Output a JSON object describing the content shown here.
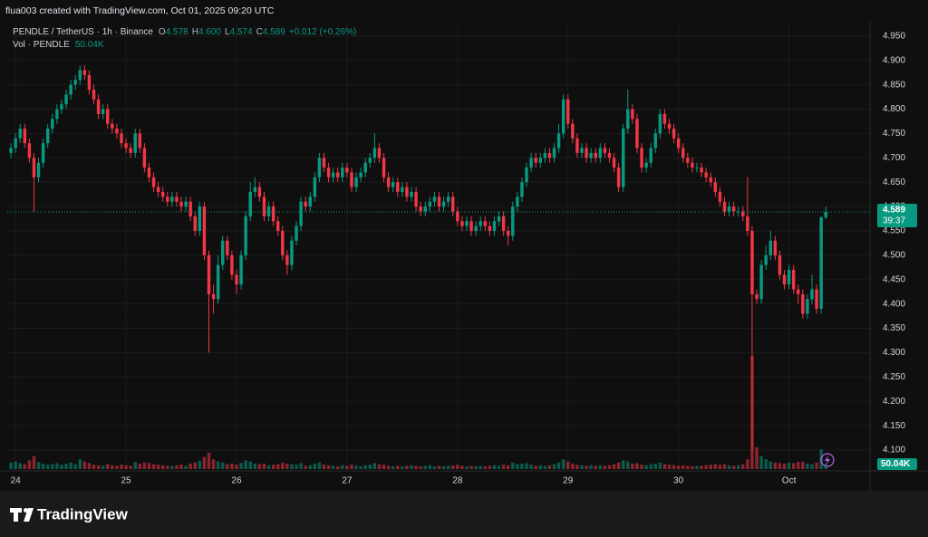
{
  "header": {
    "credit": "flua003 created with TradingView.com, Oct 01, 2025 09:20 UTC"
  },
  "chart_data": {
    "type": "candlestick",
    "symbol": "PENDLE / TetherUS · 1h · Binance",
    "legend_labels": [
      "O",
      "H",
      "L",
      "C"
    ],
    "legend_values": {
      "open": "4.578",
      "high": "4.600",
      "low": "4.574",
      "close": "4.589",
      "change": "+0.012 (+0.26%)"
    },
    "volume_label": "Vol · PENDLE",
    "volume_value_label": "50.04K",
    "up_color": "#089981",
    "down_color": "#f23645",
    "grid": true,
    "last_price": 4.589,
    "countdown": "39:37",
    "xlim": [
      -0.8,
      186.6
    ],
    "xticks": [
      {
        "value": 1,
        "label": "24"
      },
      {
        "value": 25,
        "label": "25"
      },
      {
        "value": 49,
        "label": "26"
      },
      {
        "value": 73,
        "label": "27"
      },
      {
        "value": 97,
        "label": "28"
      },
      {
        "value": 121,
        "label": "29"
      },
      {
        "value": 145,
        "label": "30"
      },
      {
        "value": 169,
        "label": "Oct"
      }
    ],
    "ylim": [
      4.061,
      4.972
    ],
    "yticks": [
      {
        "value": 4.1,
        "label": "4.100"
      },
      {
        "value": 4.15,
        "label": "4.150"
      },
      {
        "value": 4.2,
        "label": "4.200"
      },
      {
        "value": 4.25,
        "label": "4.250"
      },
      {
        "value": 4.3,
        "label": "4.300"
      },
      {
        "value": 4.35,
        "label": "4.350"
      },
      {
        "value": 4.4,
        "label": "4.400"
      },
      {
        "value": 4.45,
        "label": "4.450"
      },
      {
        "value": 4.5,
        "label": "4.500"
      },
      {
        "value": 4.55,
        "label": "4.550"
      },
      {
        "value": 4.6,
        "label": "4.600"
      },
      {
        "value": 4.65,
        "label": "4.650"
      },
      {
        "value": 4.7,
        "label": "4.700"
      },
      {
        "value": 4.75,
        "label": "4.750"
      },
      {
        "value": 4.8,
        "label": "4.800"
      },
      {
        "value": 4.85,
        "label": "4.850"
      },
      {
        "value": 4.9,
        "label": "4.900"
      },
      {
        "value": 4.95,
        "label": "4.950"
      }
    ],
    "open": [
      4.71,
      4.72,
      4.74,
      4.76,
      4.73,
      4.7,
      4.66,
      4.69,
      4.73,
      4.76,
      4.78,
      4.8,
      4.81,
      4.83,
      4.85,
      4.86,
      4.88,
      4.87,
      4.84,
      4.82,
      4.79,
      4.8,
      4.77,
      4.76,
      4.75,
      4.73,
      4.72,
      4.71,
      4.75,
      4.72,
      4.68,
      4.66,
      4.64,
      4.63,
      4.62,
      4.61,
      4.62,
      4.61,
      4.6,
      4.61,
      4.58,
      4.55,
      4.6,
      4.5,
      4.42,
      4.41,
      4.48,
      4.53,
      4.5,
      4.46,
      4.44,
      4.5,
      4.58,
      4.63,
      4.64,
      4.62,
      4.58,
      4.6,
      4.57,
      4.55,
      4.5,
      4.48,
      4.53,
      4.56,
      4.61,
      4.6,
      4.62,
      4.66,
      4.7,
      4.68,
      4.66,
      4.67,
      4.66,
      4.68,
      4.67,
      4.64,
      4.66,
      4.67,
      4.69,
      4.7,
      4.72,
      4.7,
      4.66,
      4.64,
      4.65,
      4.63,
      4.64,
      4.62,
      4.63,
      4.6,
      4.59,
      4.6,
      4.61,
      4.62,
      4.6,
      4.61,
      4.62,
      4.59,
      4.57,
      4.56,
      4.57,
      4.55,
      4.56,
      4.57,
      4.56,
      4.55,
      4.57,
      4.58,
      4.55,
      4.54,
      4.6,
      4.62,
      4.65,
      4.68,
      4.7,
      4.69,
      4.7,
      4.71,
      4.7,
      4.72,
      4.75,
      4.82,
      4.77,
      4.74,
      4.71,
      4.72,
      4.7,
      4.71,
      4.7,
      4.72,
      4.71,
      4.7,
      4.68,
      4.64,
      4.76,
      4.8,
      4.78,
      4.72,
      4.68,
      4.69,
      4.72,
      4.75,
      4.79,
      4.77,
      4.76,
      4.74,
      4.72,
      4.7,
      4.69,
      4.68,
      4.68,
      4.67,
      4.66,
      4.65,
      4.63,
      4.61,
      4.59,
      4.6,
      4.59,
      4.59,
      4.58,
      4.55,
      4.42,
      4.41,
      4.48,
      4.5,
      4.53,
      4.5,
      4.46,
      4.44,
      4.47,
      4.43,
      4.42,
      4.38,
      4.41,
      4.43,
      4.39,
      4.578
    ],
    "high": [
      4.73,
      4.75,
      4.77,
      4.77,
      4.74,
      4.71,
      4.7,
      4.74,
      4.77,
      4.79,
      4.81,
      4.82,
      4.84,
      4.86,
      4.87,
      4.89,
      4.89,
      4.88,
      4.85,
      4.83,
      4.81,
      4.81,
      4.78,
      4.77,
      4.76,
      4.74,
      4.73,
      4.76,
      4.76,
      4.73,
      4.69,
      4.67,
      4.65,
      4.64,
      4.63,
      4.63,
      4.63,
      4.62,
      4.62,
      4.62,
      4.59,
      4.61,
      4.61,
      4.51,
      4.44,
      4.5,
      4.54,
      4.54,
      4.51,
      4.47,
      4.51,
      4.59,
      4.65,
      4.66,
      4.65,
      4.63,
      4.61,
      4.61,
      4.58,
      4.56,
      4.51,
      4.54,
      4.57,
      4.62,
      4.62,
      4.63,
      4.67,
      4.71,
      4.71,
      4.69,
      4.68,
      4.68,
      4.69,
      4.69,
      4.68,
      4.67,
      4.68,
      4.7,
      4.71,
      4.75,
      4.73,
      4.71,
      4.67,
      4.66,
      4.66,
      4.65,
      4.65,
      4.64,
      4.64,
      4.61,
      4.61,
      4.62,
      4.63,
      4.63,
      4.62,
      4.63,
      4.63,
      4.6,
      4.58,
      4.58,
      4.58,
      4.57,
      4.58,
      4.58,
      4.57,
      4.58,
      4.59,
      4.59,
      4.56,
      4.61,
      4.63,
      4.66,
      4.69,
      4.71,
      4.71,
      4.71,
      4.72,
      4.72,
      4.73,
      4.77,
      4.83,
      4.83,
      4.78,
      4.75,
      4.73,
      4.73,
      4.72,
      4.72,
      4.73,
      4.73,
      4.72,
      4.71,
      4.69,
      4.77,
      4.84,
      4.81,
      4.79,
      4.73,
      4.7,
      4.73,
      4.76,
      4.8,
      4.8,
      4.78,
      4.77,
      4.75,
      4.73,
      4.71,
      4.7,
      4.69,
      4.69,
      4.68,
      4.67,
      4.66,
      4.64,
      4.62,
      4.61,
      4.61,
      4.6,
      4.6,
      4.66,
      4.56,
      4.43,
      4.49,
      4.52,
      4.55,
      4.54,
      4.51,
      4.47,
      4.48,
      4.48,
      4.44,
      4.43,
      4.42,
      4.46,
      4.44,
      4.58,
      4.6
    ],
    "low": [
      4.7,
      4.71,
      4.73,
      4.72,
      4.69,
      4.59,
      4.65,
      4.68,
      4.72,
      4.75,
      4.77,
      4.79,
      4.8,
      4.82,
      4.84,
      4.85,
      4.86,
      4.83,
      4.81,
      4.78,
      4.78,
      4.76,
      4.75,
      4.74,
      4.72,
      4.71,
      4.7,
      4.7,
      4.71,
      4.67,
      4.65,
      4.63,
      4.62,
      4.61,
      4.6,
      4.6,
      4.6,
      4.59,
      4.59,
      4.57,
      4.54,
      4.54,
      4.49,
      4.3,
      4.38,
      4.4,
      4.47,
      4.49,
      4.45,
      4.42,
      4.43,
      4.49,
      4.57,
      4.62,
      4.61,
      4.57,
      4.57,
      4.56,
      4.54,
      4.49,
      4.46,
      4.47,
      4.52,
      4.55,
      4.59,
      4.59,
      4.61,
      4.65,
      4.67,
      4.65,
      4.65,
      4.65,
      4.65,
      4.66,
      4.63,
      4.63,
      4.65,
      4.66,
      4.68,
      4.69,
      4.69,
      4.65,
      4.63,
      4.63,
      4.62,
      4.62,
      4.61,
      4.61,
      4.59,
      4.58,
      4.58,
      4.59,
      4.6,
      4.59,
      4.59,
      4.6,
      4.58,
      4.56,
      4.55,
      4.55,
      4.54,
      4.54,
      4.55,
      4.55,
      4.54,
      4.54,
      4.56,
      4.54,
      4.52,
      4.53,
      4.59,
      4.61,
      4.64,
      4.67,
      4.68,
      4.68,
      4.69,
      4.69,
      4.69,
      4.71,
      4.74,
      4.76,
      4.73,
      4.7,
      4.7,
      4.69,
      4.69,
      4.69,
      4.69,
      4.7,
      4.69,
      4.67,
      4.63,
      4.63,
      4.75,
      4.77,
      4.71,
      4.67,
      4.67,
      4.68,
      4.71,
      4.74,
      4.76,
      4.75,
      4.73,
      4.71,
      4.69,
      4.68,
      4.67,
      4.67,
      4.66,
      4.65,
      4.64,
      4.62,
      4.6,
      4.58,
      4.58,
      4.58,
      4.58,
      4.57,
      4.54,
      4.1,
      4.4,
      4.4,
      4.47,
      4.49,
      4.49,
      4.45,
      4.43,
      4.43,
      4.42,
      4.4,
      4.37,
      4.37,
      4.4,
      4.38,
      4.38,
      4.574
    ],
    "close": [
      4.72,
      4.74,
      4.76,
      4.73,
      4.7,
      4.66,
      4.69,
      4.73,
      4.76,
      4.78,
      4.8,
      4.81,
      4.83,
      4.85,
      4.86,
      4.88,
      4.87,
      4.84,
      4.82,
      4.79,
      4.8,
      4.77,
      4.76,
      4.75,
      4.73,
      4.72,
      4.71,
      4.75,
      4.72,
      4.68,
      4.66,
      4.64,
      4.63,
      4.62,
      4.61,
      4.62,
      4.61,
      4.6,
      4.61,
      4.58,
      4.55,
      4.6,
      4.5,
      4.42,
      4.41,
      4.48,
      4.53,
      4.5,
      4.46,
      4.44,
      4.5,
      4.58,
      4.63,
      4.64,
      4.62,
      4.58,
      4.6,
      4.57,
      4.55,
      4.5,
      4.48,
      4.53,
      4.56,
      4.61,
      4.6,
      4.62,
      4.66,
      4.7,
      4.68,
      4.66,
      4.67,
      4.66,
      4.68,
      4.67,
      4.64,
      4.66,
      4.67,
      4.69,
      4.7,
      4.72,
      4.7,
      4.66,
      4.64,
      4.65,
      4.63,
      4.64,
      4.62,
      4.63,
      4.6,
      4.59,
      4.6,
      4.61,
      4.62,
      4.6,
      4.61,
      4.62,
      4.59,
      4.57,
      4.56,
      4.57,
      4.55,
      4.56,
      4.57,
      4.56,
      4.55,
      4.57,
      4.58,
      4.55,
      4.54,
      4.6,
      4.62,
      4.65,
      4.68,
      4.7,
      4.69,
      4.7,
      4.71,
      4.7,
      4.72,
      4.75,
      4.82,
      4.77,
      4.74,
      4.71,
      4.72,
      4.7,
      4.71,
      4.7,
      4.72,
      4.71,
      4.7,
      4.68,
      4.64,
      4.76,
      4.8,
      4.78,
      4.72,
      4.68,
      4.69,
      4.72,
      4.75,
      4.79,
      4.77,
      4.76,
      4.74,
      4.72,
      4.7,
      4.69,
      4.68,
      4.68,
      4.67,
      4.66,
      4.65,
      4.63,
      4.61,
      4.59,
      4.6,
      4.59,
      4.59,
      4.58,
      4.55,
      4.42,
      4.41,
      4.48,
      4.5,
      4.53,
      4.5,
      4.46,
      4.44,
      4.47,
      4.43,
      4.42,
      4.38,
      4.41,
      4.43,
      4.39,
      4.578,
      4.589
    ],
    "volume": [
      60000,
      70000,
      55000,
      45000,
      80000,
      120000,
      65000,
      50000,
      40000,
      45000,
      55000,
      40000,
      50000,
      60000,
      45000,
      90000,
      70000,
      55000,
      40000,
      35000,
      30000,
      45000,
      35000,
      30000,
      40000,
      35000,
      30000,
      65000,
      50000,
      60000,
      55000,
      45000,
      40000,
      35000,
      30000,
      30000,
      35000,
      40000,
      30000,
      50000,
      60000,
      75000,
      110000,
      150000,
      90000,
      70000,
      60000,
      45000,
      50000,
      40000,
      55000,
      80000,
      70000,
      50000,
      45000,
      50000,
      35000,
      40000,
      45000,
      60000,
      50000,
      45000,
      40000,
      55000,
      30000,
      35000,
      50000,
      60000,
      40000,
      35000,
      30000,
      25000,
      35000,
      30000,
      40000,
      30000,
      25000,
      35000,
      40000,
      55000,
      45000,
      40000,
      30000,
      25000,
      30000,
      25000,
      30000,
      35000,
      30000,
      25000,
      30000,
      35000,
      25000,
      30000,
      25000,
      30000,
      35000,
      40000,
      30000,
      25000,
      30000,
      25000,
      30000,
      25000,
      30000,
      35000,
      30000,
      40000,
      35000,
      60000,
      45000,
      50000,
      55000,
      40000,
      30000,
      35000,
      30000,
      35000,
      45000,
      60000,
      90000,
      70000,
      50000,
      40000,
      35000,
      30000,
      35000,
      30000,
      35000,
      30000,
      35000,
      45000,
      60000,
      80000,
      70000,
      50000,
      55000,
      40000,
      35000,
      45000,
      50000,
      60000,
      45000,
      40000,
      35000,
      30000,
      35000,
      30000,
      25000,
      30000,
      30000,
      35000,
      40000,
      45000,
      40000,
      45000,
      35000,
      30000,
      35000,
      45000,
      90000,
      1040000,
      200000,
      120000,
      90000,
      70000,
      60000,
      55000,
      50000,
      60000,
      55000,
      65000,
      70000,
      50000,
      45000,
      60000,
      180000,
      50040
    ]
  },
  "footer": {
    "brand": "TradingView"
  }
}
